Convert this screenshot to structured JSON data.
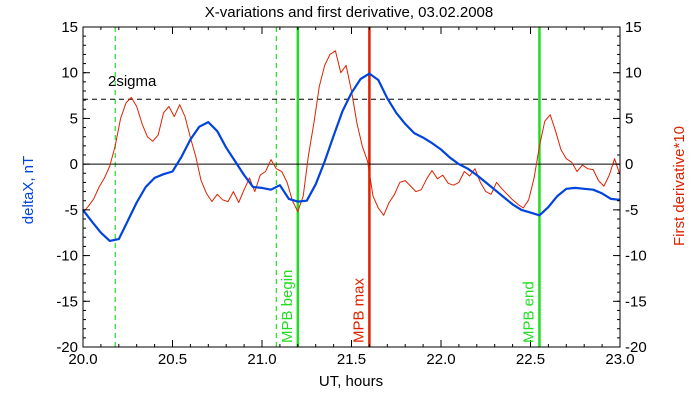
{
  "chart_data": {
    "type": "line",
    "title": "X-variations and first derivative, 03.02.2008",
    "xlabel": "UT, hours",
    "ylabel_left": "deltaX, nT",
    "ylabel_right": "First derivative*10",
    "xlim": [
      20.0,
      23.0
    ],
    "ylim": [
      -20,
      15
    ],
    "x_ticks": [
      20.0,
      20.5,
      21.0,
      21.5,
      22.0,
      22.5,
      23.0
    ],
    "x_tick_labels": [
      "20.0",
      "20.5",
      "21.0",
      "21.5",
      "22.0",
      "22.5",
      "23.0"
    ],
    "y_ticks": [
      15,
      10,
      5,
      0,
      -5,
      -10,
      -15,
      -20
    ],
    "y_tick_labels": [
      "15",
      "10",
      "5",
      "0",
      "-5",
      "-10",
      "-15",
      "-20"
    ],
    "grid": false,
    "colors": {
      "deltaX": "#0044dd",
      "derivative": "#dd2200",
      "mpb": "#22dd22",
      "mpb_max": "#dd2200",
      "axes": "#000000"
    },
    "series": [
      {
        "key": "deltaX",
        "x": [
          20.0,
          20.05,
          20.1,
          20.15,
          20.2,
          20.25,
          20.3,
          20.35,
          20.4,
          20.45,
          20.5,
          20.55,
          20.6,
          20.65,
          20.7,
          20.75,
          20.8,
          20.85,
          20.9,
          20.95,
          21.0,
          21.05,
          21.1,
          21.15,
          21.2,
          21.25,
          21.3,
          21.35,
          21.4,
          21.45,
          21.5,
          21.55,
          21.6,
          21.65,
          21.7,
          21.75,
          21.8,
          21.85,
          21.9,
          21.95,
          22.0,
          22.05,
          22.1,
          22.15,
          22.2,
          22.25,
          22.3,
          22.35,
          22.4,
          22.45,
          22.5,
          22.55,
          22.6,
          22.65,
          22.7,
          22.75,
          22.8,
          22.85,
          22.9,
          22.95,
          23.0
        ],
        "values": [
          -5.0,
          -6.3,
          -7.5,
          -8.4,
          -8.2,
          -6.2,
          -4.2,
          -2.5,
          -1.5,
          -1.1,
          -0.8,
          0.8,
          2.7,
          4.1,
          4.6,
          3.6,
          1.8,
          0.3,
          -1.2,
          -2.5,
          -2.6,
          -2.8,
          -2.3,
          -3.8,
          -4.1,
          -4.0,
          -2.2,
          0.3,
          3.1,
          5.8,
          7.8,
          9.3,
          9.9,
          9.2,
          7.2,
          5.6,
          4.4,
          3.4,
          2.9,
          2.3,
          1.6,
          0.7,
          0.0,
          -0.5,
          -1.2,
          -2.0,
          -2.8,
          -3.6,
          -4.4,
          -5.0,
          -5.3,
          -5.6,
          -4.7,
          -3.5,
          -2.7,
          -2.6,
          -2.7,
          -2.8,
          -3.2,
          -3.8,
          -3.9
        ]
      },
      {
        "key": "derivative",
        "x": [
          20.0,
          20.03,
          20.06,
          20.09,
          20.12,
          20.15,
          20.18,
          20.21,
          20.24,
          20.27,
          20.3,
          20.33,
          20.36,
          20.39,
          20.42,
          20.45,
          20.48,
          20.51,
          20.54,
          20.57,
          20.6,
          20.63,
          20.66,
          20.69,
          20.72,
          20.75,
          20.78,
          20.81,
          20.84,
          20.87,
          20.9,
          20.93,
          20.96,
          20.99,
          21.02,
          21.05,
          21.08,
          21.11,
          21.14,
          21.17,
          21.2,
          21.23,
          21.26,
          21.29,
          21.32,
          21.35,
          21.38,
          21.41,
          21.44,
          21.47,
          21.5,
          21.53,
          21.56,
          21.59,
          21.62,
          21.65,
          21.68,
          21.71,
          21.74,
          21.77,
          21.8,
          21.83,
          21.86,
          21.89,
          21.92,
          21.95,
          21.98,
          22.01,
          22.04,
          22.07,
          22.1,
          22.13,
          22.16,
          22.19,
          22.22,
          22.25,
          22.28,
          22.31,
          22.34,
          22.37,
          22.4,
          22.43,
          22.46,
          22.49,
          22.52,
          22.55,
          22.58,
          22.61,
          22.64,
          22.67,
          22.7,
          22.73,
          22.76,
          22.79,
          22.82,
          22.85,
          22.88,
          22.91,
          22.94,
          22.97,
          23.0
        ],
        "values": [
          -5.3,
          -4.6,
          -3.8,
          -2.5,
          -1.5,
          -0.2,
          2.0,
          5.0,
          6.7,
          7.3,
          6.3,
          4.4,
          3.0,
          2.5,
          3.2,
          5.6,
          6.3,
          5.2,
          6.5,
          5.2,
          2.9,
          0.8,
          -1.8,
          -3.2,
          -4.1,
          -3.3,
          -3.9,
          -4.1,
          -3.0,
          -4.2,
          -2.8,
          -1.5,
          -3.0,
          -1.2,
          -0.8,
          0.5,
          -0.5,
          -0.8,
          -2.0,
          -4.0,
          -5.2,
          -3.5,
          1.0,
          4.5,
          8.5,
          10.8,
          12.0,
          12.4,
          10.0,
          10.8,
          8.0,
          4.5,
          2.0,
          0.3,
          -3.5,
          -4.8,
          -5.6,
          -4.2,
          -3.3,
          -2.0,
          -1.8,
          -2.4,
          -3.0,
          -2.8,
          -1.6,
          -0.7,
          -1.6,
          -1.2,
          -2.1,
          -2.3,
          -2.0,
          -0.8,
          -1.3,
          -0.5,
          -2.0,
          -3.0,
          -3.3,
          -2.0,
          -2.7,
          -3.3,
          -3.9,
          -4.4,
          -4.8,
          -3.9,
          -1.5,
          2.0,
          4.7,
          5.4,
          3.6,
          1.6,
          0.6,
          0.2,
          -0.8,
          -0.1,
          -0.5,
          -0.6,
          -1.8,
          -2.4,
          -1.2,
          0.6,
          -1.2
        ]
      }
    ],
    "reference_lines": {
      "sigma": {
        "label": "2sigma",
        "y": 7.1
      },
      "zero": {
        "y": 0
      }
    },
    "vlines_dashed": [
      20.18,
      21.08
    ],
    "markers": [
      {
        "label": "MPB begin",
        "x": 21.2,
        "key": "mpb"
      },
      {
        "label": "MPB max",
        "x": 21.6,
        "key": "mpb_max"
      },
      {
        "label": "MPB end",
        "x": 22.55,
        "key": "mpb"
      }
    ]
  }
}
